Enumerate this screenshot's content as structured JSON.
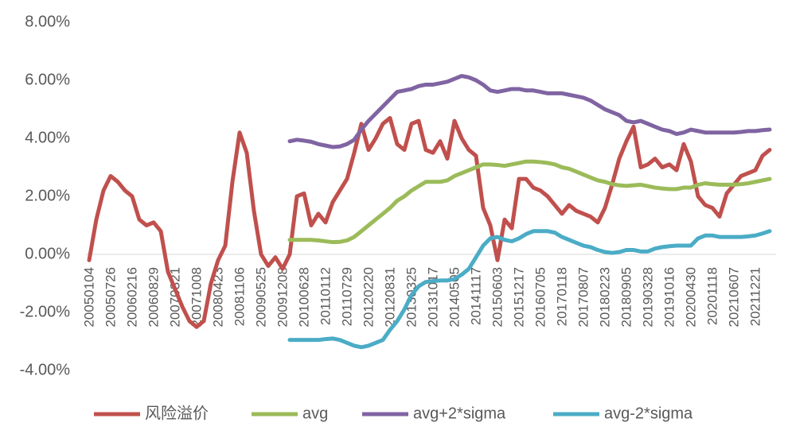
{
  "chart_data": {
    "type": "line",
    "categories": [
      "20050104",
      null,
      null,
      "20050726",
      null,
      null,
      "20060216",
      null,
      null,
      "20060829",
      null,
      null,
      "20070321",
      null,
      null,
      "20071008",
      null,
      null,
      "20080423",
      null,
      null,
      "20081106",
      null,
      null,
      "20090525",
      null,
      null,
      "20091208",
      null,
      null,
      "20100628",
      null,
      null,
      "20110112",
      null,
      null,
      "20110729",
      null,
      null,
      "20120220",
      null,
      null,
      "20120831",
      null,
      null,
      "20130325",
      null,
      null,
      "20131017",
      null,
      null,
      "20140505",
      null,
      null,
      "20141117",
      null,
      null,
      "20150603",
      null,
      null,
      "20151217",
      null,
      null,
      "20160705",
      null,
      null,
      "20170118",
      null,
      null,
      "20170807",
      null,
      null,
      "20180223",
      null,
      null,
      "20180905",
      null,
      null,
      "20190328",
      null,
      null,
      "20191016",
      null,
      null,
      "20200430",
      null,
      null,
      "20201118",
      null,
      null,
      "20210607",
      null,
      null,
      "20211221",
      null,
      null
    ],
    "series": [
      {
        "name": "风险溢价",
        "color": "#c0504d",
        "values": [
          -0.2,
          1.2,
          2.2,
          2.7,
          2.5,
          2.2,
          2.0,
          1.2,
          1.0,
          1.1,
          0.8,
          -0.6,
          -1.2,
          -1.8,
          -2.3,
          -2.5,
          -2.3,
          -1.0,
          -0.2,
          0.3,
          2.5,
          4.2,
          3.5,
          1.5,
          0.0,
          -0.4,
          -0.1,
          -0.5,
          0.0,
          2.0,
          2.1,
          1.0,
          1.4,
          1.1,
          1.8,
          2.2,
          2.6,
          3.5,
          4.5,
          3.6,
          4.0,
          4.5,
          4.7,
          3.8,
          3.6,
          4.5,
          4.6,
          3.6,
          3.5,
          3.9,
          3.3,
          4.6,
          4.0,
          3.6,
          3.4,
          1.6,
          1.0,
          -0.2,
          1.2,
          0.9,
          2.6,
          2.6,
          2.3,
          2.2,
          2.0,
          1.7,
          1.4,
          1.7,
          1.5,
          1.4,
          1.3,
          1.1,
          1.6,
          2.4,
          3.3,
          3.9,
          4.4,
          3.0,
          3.1,
          3.3,
          3.0,
          3.1,
          2.9,
          3.8,
          3.2,
          2.0,
          1.7,
          1.6,
          1.3,
          2.1,
          2.4,
          2.7,
          2.8,
          2.9,
          3.4,
          3.6
        ]
      },
      {
        "name": "avg",
        "color": "#9bbb59",
        "values": [
          null,
          null,
          null,
          null,
          null,
          null,
          null,
          null,
          null,
          null,
          null,
          null,
          null,
          null,
          null,
          null,
          null,
          null,
          null,
          null,
          null,
          null,
          null,
          null,
          null,
          null,
          null,
          null,
          0.5,
          0.5,
          0.5,
          0.5,
          0.48,
          0.45,
          0.42,
          0.43,
          0.48,
          0.6,
          0.8,
          1.0,
          1.2,
          1.4,
          1.6,
          1.85,
          2.0,
          2.2,
          2.35,
          2.5,
          2.5,
          2.5,
          2.55,
          2.7,
          2.8,
          2.9,
          3.0,
          3.1,
          3.1,
          3.08,
          3.05,
          3.1,
          3.15,
          3.2,
          3.2,
          3.18,
          3.15,
          3.1,
          3.0,
          2.95,
          2.85,
          2.75,
          2.65,
          2.55,
          2.5,
          2.42,
          2.38,
          2.36,
          2.38,
          2.4,
          2.35,
          2.3,
          2.27,
          2.25,
          2.25,
          2.3,
          2.3,
          2.4,
          2.45,
          2.42,
          2.4,
          2.4,
          2.4,
          2.42,
          2.45,
          2.5,
          2.55,
          2.6
        ]
      },
      {
        "name": "avg+2*sigma",
        "color": "#8064a2",
        "values": [
          null,
          null,
          null,
          null,
          null,
          null,
          null,
          null,
          null,
          null,
          null,
          null,
          null,
          null,
          null,
          null,
          null,
          null,
          null,
          null,
          null,
          null,
          null,
          null,
          null,
          null,
          null,
          null,
          3.9,
          3.95,
          3.92,
          3.88,
          3.8,
          3.75,
          3.7,
          3.72,
          3.8,
          3.95,
          4.3,
          4.6,
          4.85,
          5.1,
          5.35,
          5.6,
          5.65,
          5.7,
          5.8,
          5.85,
          5.85,
          5.9,
          5.95,
          6.05,
          6.15,
          6.1,
          6.0,
          5.85,
          5.65,
          5.6,
          5.65,
          5.7,
          5.7,
          5.65,
          5.65,
          5.6,
          5.55,
          5.55,
          5.55,
          5.5,
          5.45,
          5.4,
          5.3,
          5.15,
          5.0,
          4.9,
          4.8,
          4.6,
          4.55,
          4.6,
          4.5,
          4.4,
          4.3,
          4.25,
          4.15,
          4.2,
          4.3,
          4.25,
          4.2,
          4.2,
          4.2,
          4.2,
          4.2,
          4.22,
          4.25,
          4.25,
          4.28,
          4.3
        ]
      },
      {
        "name": "avg-2*sigma",
        "color": "#4bacc6",
        "values": [
          null,
          null,
          null,
          null,
          null,
          null,
          null,
          null,
          null,
          null,
          null,
          null,
          null,
          null,
          null,
          null,
          null,
          null,
          null,
          null,
          null,
          null,
          null,
          null,
          null,
          null,
          null,
          null,
          -2.95,
          -2.95,
          -2.95,
          -2.95,
          -2.95,
          -2.92,
          -2.9,
          -2.95,
          -3.05,
          -3.15,
          -3.2,
          -3.15,
          -3.05,
          -2.95,
          -2.6,
          -2.3,
          -1.9,
          -1.4,
          -1.1,
          -0.95,
          -0.92,
          -0.9,
          -0.9,
          -0.85,
          -0.7,
          -0.5,
          -0.1,
          0.3,
          0.55,
          0.6,
          0.5,
          0.45,
          0.55,
          0.7,
          0.8,
          0.8,
          0.8,
          0.75,
          0.6,
          0.5,
          0.4,
          0.3,
          0.25,
          0.15,
          0.08,
          0.05,
          0.08,
          0.15,
          0.15,
          0.1,
          0.1,
          0.2,
          0.25,
          0.28,
          0.3,
          0.3,
          0.3,
          0.55,
          0.65,
          0.65,
          0.6,
          0.6,
          0.6,
          0.6,
          0.62,
          0.65,
          0.72,
          0.8
        ]
      }
    ],
    "ylim": [
      -4,
      8
    ],
    "yticks": [
      {
        "value": -4,
        "label": "-4.00%"
      },
      {
        "value": -2,
        "label": "-2.00%"
      },
      {
        "value": 0,
        "label": "0.00%"
      },
      {
        "value": 2,
        "label": "2.00%"
      },
      {
        "value": 4,
        "label": "4.00%"
      },
      {
        "value": 6,
        "label": "6.00%"
      },
      {
        "value": 8,
        "label": "8.00%"
      }
    ],
    "grid": false,
    "legend": "bottom"
  }
}
